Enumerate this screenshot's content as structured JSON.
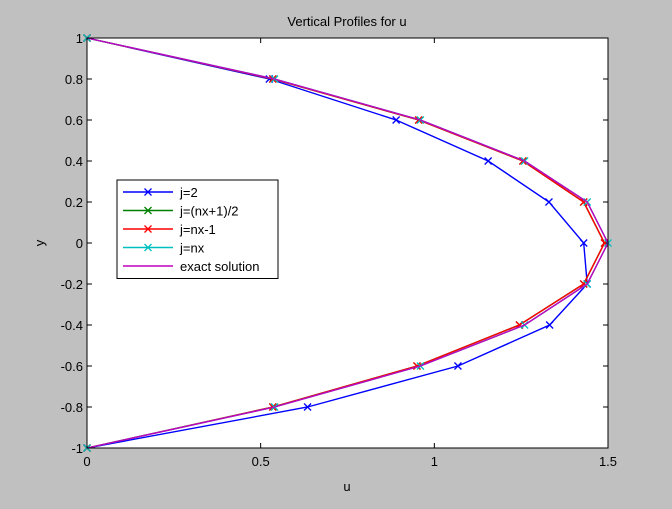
{
  "chart_data": {
    "type": "line",
    "title": "Vertical Profiles for u",
    "xlabel": "u",
    "ylabel": "y",
    "xlim": [
      0,
      1.5
    ],
    "ylim": [
      -1,
      1
    ],
    "xticks": [
      "0",
      "0.5",
      "1",
      "1.5"
    ],
    "yticks": [
      "-1",
      "-0.8",
      "-0.6",
      "-0.4",
      "-0.2",
      "0",
      "0.2",
      "0.4",
      "0.6",
      "0.8",
      "1"
    ],
    "grid": false,
    "legend_position": "left",
    "series": [
      {
        "name": "j=2",
        "color": "#0000ff",
        "marker": "x",
        "y": [
          -1,
          -0.8,
          -0.6,
          -0.4,
          -0.2,
          0,
          0.2,
          0.4,
          0.6,
          0.8,
          1
        ],
        "x": [
          0,
          0.635,
          1.068,
          1.332,
          1.44,
          1.43,
          1.33,
          1.155,
          0.89,
          0.525,
          0
        ]
      },
      {
        "name": "j=(nx+1)/2",
        "color": "#008000",
        "marker": "x",
        "y": [
          -1,
          -0.8,
          -0.6,
          -0.4,
          -0.2,
          0,
          0.2,
          0.4,
          0.6,
          0.8,
          1
        ],
        "x": [
          0,
          0.535,
          0.95,
          1.245,
          1.43,
          1.49,
          1.43,
          1.255,
          0.955,
          0.535,
          0
        ]
      },
      {
        "name": "j=nx-1",
        "color": "#ff0000",
        "marker": "x",
        "y": [
          -1,
          -0.8,
          -0.6,
          -0.4,
          -0.2,
          0,
          0.2,
          0.4,
          0.6,
          0.8,
          1
        ],
        "x": [
          0,
          0.535,
          0.95,
          1.245,
          1.43,
          1.49,
          1.43,
          1.255,
          0.955,
          0.535,
          0
        ]
      },
      {
        "name": "j=nx",
        "color": "#00bfbf",
        "marker": "x",
        "y": [
          -1,
          -0.8,
          -0.6,
          -0.4,
          -0.2,
          0,
          0.2,
          0.4,
          0.6,
          0.8,
          1
        ],
        "x": [
          0,
          0.54,
          0.96,
          1.26,
          1.44,
          1.5,
          1.44,
          1.26,
          0.96,
          0.54,
          0
        ]
      },
      {
        "name": "exact solution",
        "color": "#bf00bf",
        "marker": "none",
        "y": [
          -1,
          -0.8,
          -0.6,
          -0.4,
          -0.2,
          0,
          0.2,
          0.4,
          0.6,
          0.8,
          1
        ],
        "x": [
          0,
          0.54,
          0.96,
          1.26,
          1.44,
          1.5,
          1.44,
          1.26,
          0.96,
          0.54,
          0
        ]
      }
    ]
  }
}
